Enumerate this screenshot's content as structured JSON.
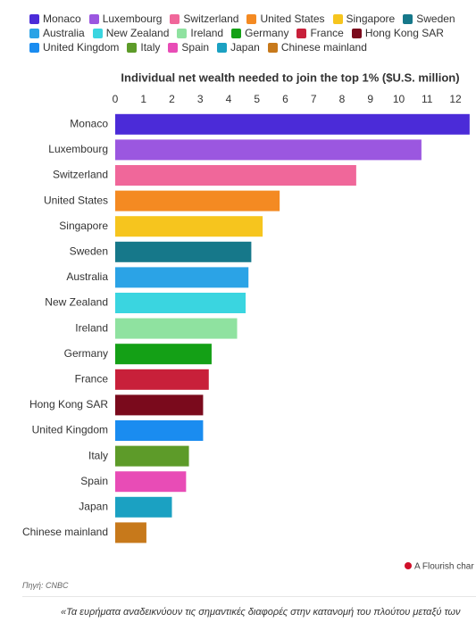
{
  "chart_data": {
    "type": "bar",
    "orientation": "horizontal",
    "title": "Individual net wealth needed to join the top 1% ($U.S. million)",
    "categories": [
      "Monaco",
      "Luxembourg",
      "Switzerland",
      "United States",
      "Singapore",
      "Sweden",
      "Australia",
      "New Zealand",
      "Ireland",
      "Germany",
      "France",
      "Hong Kong SAR",
      "United Kingdom",
      "Italy",
      "Spain",
      "Japan",
      "Chinese mainland"
    ],
    "values": [
      12.5,
      10.8,
      8.5,
      5.8,
      5.2,
      4.8,
      4.7,
      4.6,
      4.3,
      3.4,
      3.3,
      3.1,
      3.1,
      2.6,
      2.5,
      2.0,
      1.1
    ],
    "colors": [
      "#4b2bd8",
      "#9b57e0",
      "#f0679a",
      "#f48a22",
      "#f6c51e",
      "#16788a",
      "#2ba3e6",
      "#3ad5e0",
      "#8fe2a0",
      "#14a016",
      "#c8203a",
      "#7a0a1c",
      "#1a8cf0",
      "#5d9b29",
      "#e84cb6",
      "#1ba1c2",
      "#c7791b"
    ],
    "xlim": [
      0,
      12.5
    ],
    "xticks": [
      0,
      1,
      2,
      3,
      4,
      5,
      6,
      7,
      8,
      9,
      10,
      11,
      12
    ],
    "grid": false,
    "credit": "A Flourish char"
  },
  "source": "Πηγή: CNBC",
  "note": "«Τα ευρήματα αναδεικνύουν τις σημαντικές διαφορές στην κατανομή του πλούτου μεταξύ των"
}
